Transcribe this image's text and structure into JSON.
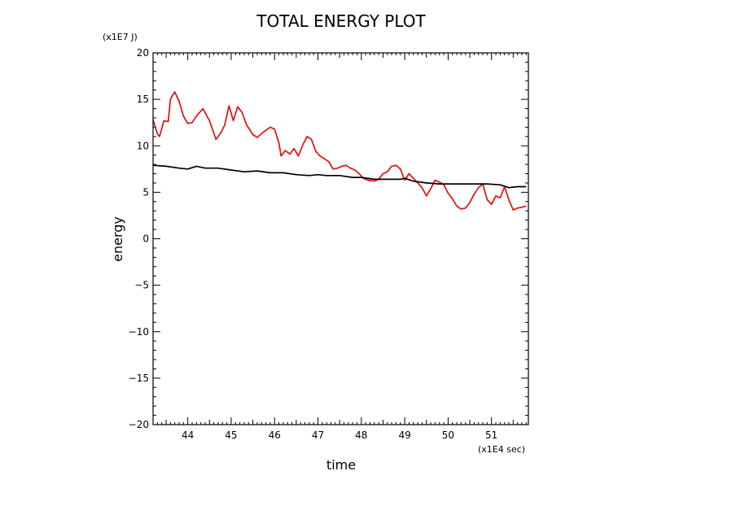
{
  "chart_data": {
    "type": "line",
    "title": "TOTAL ENERGY PLOT",
    "xlabel": "time",
    "ylabel": "energy",
    "x_unit": "(x1E4 sec)",
    "y_unit": "(x1E7 J)",
    "xlim": [
      43.2,
      51.85
    ],
    "ylim": [
      -20,
      20
    ],
    "x_ticks": [
      44,
      45,
      46,
      47,
      48,
      49,
      50,
      51
    ],
    "y_ticks": [
      20,
      15,
      10,
      5,
      0,
      -5,
      -10,
      -15,
      -20
    ],
    "grid": false,
    "legend": "none",
    "series": [
      {
        "color": "#e01010",
        "x": [
          43.2,
          43.3,
          43.35,
          43.45,
          43.55,
          43.6,
          43.7,
          43.8,
          43.9,
          44.0,
          44.1,
          44.2,
          44.35,
          44.5,
          44.65,
          44.75,
          44.85,
          44.95,
          45.05,
          45.15,
          45.25,
          45.35,
          45.5,
          45.6,
          45.75,
          45.9,
          46.0,
          46.1,
          46.15,
          46.25,
          46.35,
          46.45,
          46.55,
          46.65,
          46.75,
          46.85,
          46.95,
          47.05,
          47.15,
          47.25,
          47.35,
          47.45,
          47.55,
          47.65,
          47.75,
          47.85,
          47.95,
          48.05,
          48.15,
          48.3,
          48.4,
          48.5,
          48.6,
          48.7,
          48.8,
          48.9,
          49.0,
          49.1,
          49.2,
          49.3,
          49.4,
          49.5,
          49.6,
          49.7,
          49.8,
          49.9,
          50.0,
          50.1,
          50.2,
          50.3,
          50.4,
          50.5,
          50.6,
          50.7,
          50.8,
          50.9,
          51.0,
          51.1,
          51.2,
          51.3,
          51.4,
          51.5,
          51.6,
          51.7,
          51.8
        ],
        "y": [
          12.8,
          11.3,
          11.0,
          12.7,
          12.6,
          15.0,
          15.8,
          14.8,
          13.2,
          12.4,
          12.5,
          13.2,
          14.0,
          12.7,
          10.7,
          11.3,
          12.2,
          14.3,
          12.7,
          14.2,
          13.6,
          12.3,
          11.2,
          10.9,
          11.5,
          12.0,
          11.8,
          10.3,
          8.9,
          9.5,
          9.1,
          9.7,
          8.9,
          10.1,
          11.0,
          10.7,
          9.4,
          8.9,
          8.6,
          8.3,
          7.5,
          7.6,
          7.8,
          7.9,
          7.6,
          7.4,
          7.0,
          6.5,
          6.3,
          6.2,
          6.4,
          7.0,
          7.2,
          7.8,
          7.9,
          7.5,
          6.3,
          7.0,
          6.5,
          6.0,
          5.5,
          4.6,
          5.4,
          6.3,
          6.1,
          5.8,
          4.9,
          4.3,
          3.5,
          3.2,
          3.3,
          3.9,
          4.8,
          5.5,
          5.9,
          4.2,
          3.7,
          4.6,
          4.4,
          5.6,
          4.2,
          3.1,
          3.3,
          3.4,
          3.5
        ]
      },
      {
        "color": "#000000",
        "x": [
          43.2,
          43.5,
          43.8,
          44.0,
          44.2,
          44.4,
          44.7,
          45.0,
          45.3,
          45.6,
          45.9,
          46.2,
          46.5,
          46.8,
          47.0,
          47.2,
          47.5,
          47.8,
          48.0,
          48.3,
          48.6,
          48.9,
          49.0,
          49.2,
          49.5,
          49.8,
          50.0,
          50.3,
          50.6,
          50.9,
          51.2,
          51.4,
          51.6,
          51.8
        ],
        "y": [
          7.9,
          7.8,
          7.6,
          7.5,
          7.8,
          7.6,
          7.6,
          7.4,
          7.2,
          7.3,
          7.1,
          7.1,
          6.9,
          6.8,
          6.9,
          6.8,
          6.8,
          6.6,
          6.6,
          6.4,
          6.4,
          6.4,
          6.5,
          6.2,
          6.0,
          5.9,
          5.9,
          5.9,
          5.9,
          5.9,
          5.8,
          5.5,
          5.6,
          5.6
        ]
      }
    ]
  }
}
